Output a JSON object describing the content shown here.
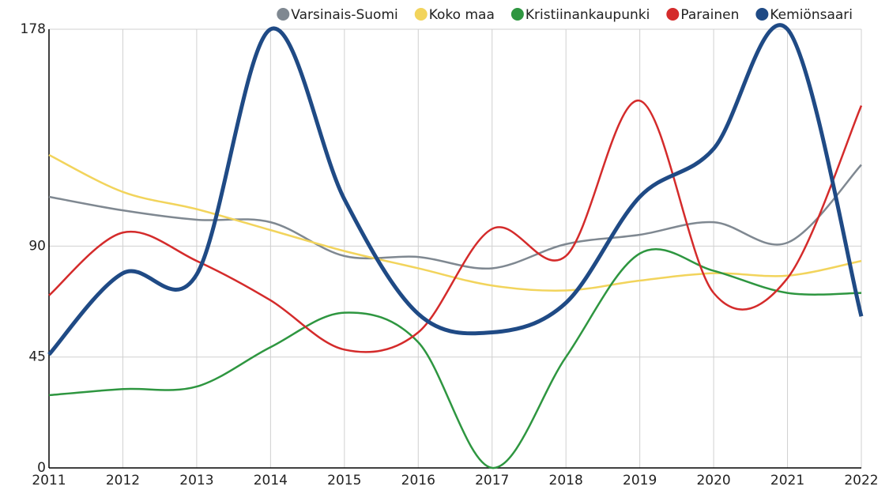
{
  "chart_data": {
    "type": "line",
    "categories": [
      "2011",
      "2012",
      "2013",
      "2014",
      "2015",
      "2016",
      "2017",
      "2018",
      "2019",
      "2020",
      "2021",
      "2022"
    ],
    "ylim": [
      0,
      178
    ],
    "yticks": [
      0,
      45,
      90,
      178
    ],
    "grid": true,
    "legend": "top",
    "series": [
      {
        "name": "Varsinais-Suomi",
        "color": "#7f8891",
        "width": 2.5,
        "values": [
          110,
          104.5,
          100.7,
          99.7,
          86,
          85.6,
          81,
          90.8,
          94.6,
          99.7,
          91.4,
          123
        ]
      },
      {
        "name": "Koko maa",
        "color": "#f2d45c",
        "width": 2.5,
        "values": [
          127,
          112,
          105,
          96.5,
          88,
          81,
          74,
          72,
          76,
          79,
          78,
          84
        ]
      },
      {
        "name": "Kristiinankaupunki",
        "color": "#2e9640",
        "width": 2.5,
        "values": [
          29.5,
          32,
          33,
          49,
          63,
          51,
          0,
          45,
          87,
          80,
          71,
          71
        ]
      },
      {
        "name": "Parainen",
        "color": "#d42b2b",
        "width": 2.5,
        "values": [
          70,
          95.5,
          84,
          68,
          48,
          55,
          97,
          86,
          149,
          71,
          77,
          147
        ]
      },
      {
        "name": "Kemiönsaari",
        "color": "#1f4a85",
        "width": 5,
        "values": [
          46,
          79,
          78.5,
          178,
          109,
          62.5,
          55,
          67,
          110,
          129.5,
          178,
          61.5
        ]
      }
    ]
  }
}
